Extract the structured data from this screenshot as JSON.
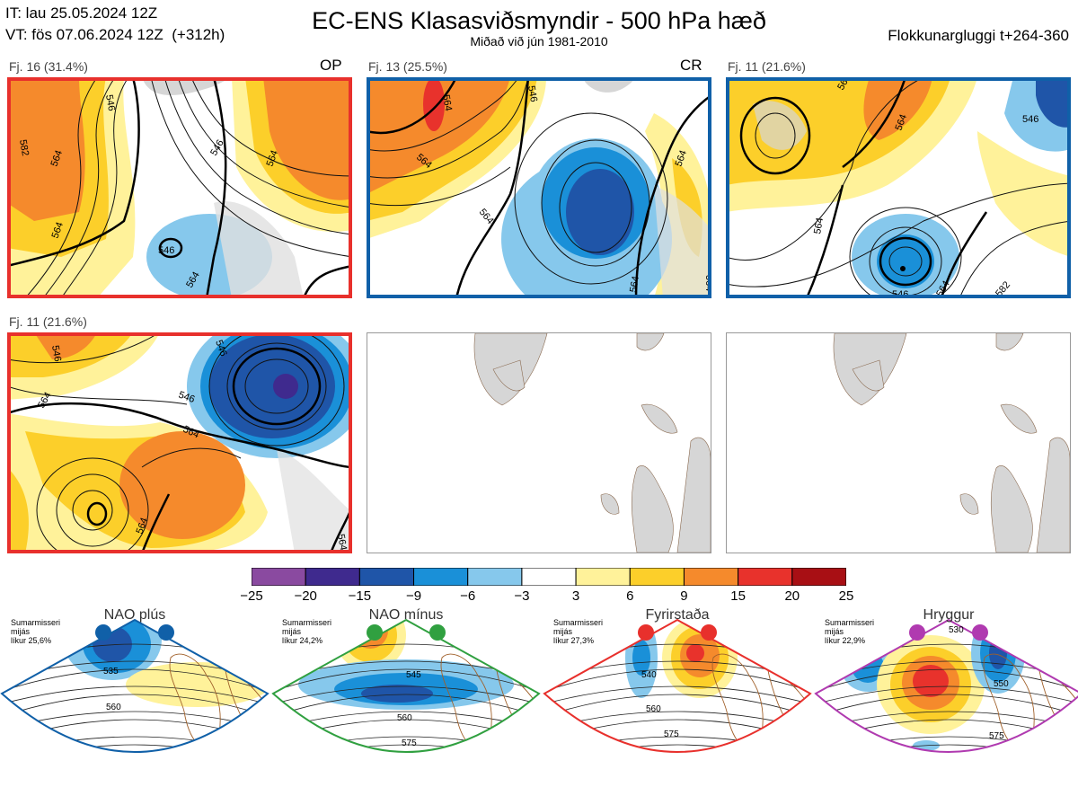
{
  "header": {
    "init_line": "IT: lau 25.05.2024 12Z",
    "valid_line": "VT: fös 07.06.2024 12Z  (+312h)",
    "title": "EC-ENS Klasasviðsmyndir - 500 hPa hæð",
    "subtitle": "Miðað við jún 1981-2010",
    "window": "Flokkunargluggi t+264-360"
  },
  "panels": [
    {
      "label": "Fj. 16 (31.4%)",
      "tag": "OP",
      "border": "#e8302c",
      "contours": [
        "582",
        "564",
        "546",
        "546",
        "564",
        "564",
        "546",
        "564"
      ]
    },
    {
      "label": "Fj. 13 (25.5%)",
      "tag": "CR",
      "border": "#1060a8",
      "contours": [
        "564",
        "564",
        "546",
        "564",
        "564",
        "564",
        "564"
      ]
    },
    {
      "label": "Fj. 11 (21.6%)",
      "tag": "",
      "border": "#1060a8",
      "contours": [
        "564",
        "564",
        "546",
        "546",
        "564",
        "564",
        "582"
      ]
    },
    {
      "label": "Fj. 11 (21.6%)",
      "tag": "",
      "border": "#e8302c",
      "contours": [
        "546",
        "546",
        "564",
        "546",
        "564",
        "564",
        "564"
      ]
    }
  ],
  "colorbar": {
    "ticks": [
      "−25",
      "−20",
      "−15",
      "−9",
      "−6",
      "−3",
      "3",
      "6",
      "9",
      "15",
      "20",
      "25"
    ],
    "colors": [
      "#8a4aa0",
      "#3f2a8e",
      "#1f55a8",
      "#1a90d8",
      "#86c8ec",
      "#ffffff",
      "#fff29a",
      "#fccf2a",
      "#f58a2c",
      "#e8322c",
      "#a80f14"
    ]
  },
  "regimes": [
    {
      "title": "NAO plús",
      "note": "Sumarmisseri\nmijás\nlíkur 25,6%",
      "color": "#1060a8",
      "contour_labels": [
        "535",
        "560"
      ]
    },
    {
      "title": "NAO mínus",
      "note": "Sumarmisseri\nmijás\nlíkur 24,2%",
      "color": "#30a040",
      "contour_labels": [
        "545",
        "560",
        "575"
      ]
    },
    {
      "title": "Fyrirstaða",
      "note": "Sumarmisseri\nmijás\nlíkur 27,3%",
      "color": "#e8302c",
      "contour_labels": [
        "540",
        "560",
        "575"
      ]
    },
    {
      "title": "Hryggur",
      "note": "Sumarmisseri\nmijás\nlíkur 22,9%",
      "color": "#b03ab0",
      "contour_labels": [
        "530",
        "550",
        "575"
      ]
    }
  ],
  "chart_data": {
    "type": "heatmap",
    "title": "EC-ENS Klasasviðsmyndir - 500 hPa hæð",
    "subtitle": "Miðað við jún 1981-2010",
    "colorbar_levels": [
      -25,
      -20,
      -15,
      -9,
      -6,
      -3,
      3,
      6,
      9,
      15,
      20,
      25
    ],
    "clusters": [
      {
        "label": "Fj. 16 (31.4%)",
        "members": 16,
        "percent": 31.4,
        "tag": "OP"
      },
      {
        "label": "Fj. 13 (25.5%)",
        "members": 13,
        "percent": 25.5,
        "tag": "CR"
      },
      {
        "label": "Fj. 11 (21.6%)",
        "members": 11,
        "percent": 21.6
      },
      {
        "label": "Fj. 11 (21.6%)",
        "members": 11,
        "percent": 21.6
      }
    ],
    "regimes": [
      {
        "name": "NAO plús",
        "likelihood": 25.6
      },
      {
        "name": "NAO mínus",
        "likelihood": 24.2
      },
      {
        "name": "Fyrirstaða",
        "likelihood": 27.3
      },
      {
        "name": "Hryggur",
        "likelihood": 22.9
      }
    ]
  }
}
